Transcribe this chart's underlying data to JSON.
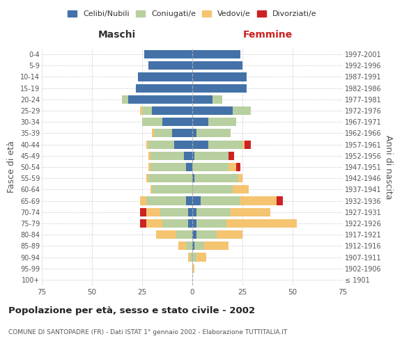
{
  "age_groups": [
    "100+",
    "95-99",
    "90-94",
    "85-89",
    "80-84",
    "75-79",
    "70-74",
    "65-69",
    "60-64",
    "55-59",
    "50-54",
    "45-49",
    "40-44",
    "35-39",
    "30-34",
    "25-29",
    "20-24",
    "15-19",
    "10-14",
    "5-9",
    "0-4"
  ],
  "birth_years": [
    "≤ 1901",
    "1902-1906",
    "1907-1911",
    "1912-1916",
    "1917-1921",
    "1922-1926",
    "1927-1931",
    "1932-1936",
    "1937-1941",
    "1942-1946",
    "1947-1951",
    "1952-1956",
    "1957-1961",
    "1962-1966",
    "1967-1971",
    "1972-1976",
    "1977-1981",
    "1982-1986",
    "1987-1991",
    "1992-1996",
    "1997-2001"
  ],
  "maschi": {
    "celibi": [
      0,
      0,
      0,
      0,
      0,
      2,
      2,
      3,
      0,
      0,
      3,
      4,
      9,
      10,
      15,
      20,
      32,
      28,
      27,
      22,
      24
    ],
    "coniugati": [
      0,
      0,
      1,
      3,
      8,
      13,
      14,
      20,
      20,
      22,
      18,
      17,
      13,
      9,
      10,
      5,
      3,
      0,
      0,
      0,
      0
    ],
    "vedovi": [
      0,
      0,
      1,
      4,
      10,
      8,
      7,
      3,
      1,
      1,
      1,
      1,
      1,
      1,
      0,
      1,
      0,
      0,
      0,
      0,
      0
    ],
    "divorziati": [
      0,
      0,
      0,
      0,
      0,
      3,
      3,
      0,
      0,
      0,
      0,
      0,
      0,
      0,
      0,
      0,
      0,
      0,
      0,
      0,
      0
    ]
  },
  "femmine": {
    "nubili": [
      0,
      0,
      0,
      1,
      2,
      2,
      2,
      4,
      0,
      1,
      0,
      1,
      8,
      2,
      8,
      20,
      10,
      27,
      27,
      25,
      24
    ],
    "coniugate": [
      0,
      0,
      2,
      5,
      10,
      15,
      17,
      20,
      20,
      22,
      18,
      17,
      17,
      17,
      14,
      9,
      5,
      0,
      0,
      0,
      0
    ],
    "vedove": [
      0,
      1,
      5,
      12,
      13,
      35,
      20,
      18,
      8,
      2,
      4,
      0,
      1,
      0,
      0,
      0,
      0,
      0,
      0,
      0,
      0
    ],
    "divorziate": [
      0,
      0,
      0,
      0,
      0,
      0,
      0,
      3,
      0,
      0,
      2,
      3,
      3,
      0,
      0,
      0,
      0,
      0,
      0,
      0,
      0
    ]
  },
  "colors": {
    "celibi": "#4472a8",
    "coniugati": "#b8cfa0",
    "vedovi": "#f5c471",
    "divorziati": "#cc2222"
  },
  "xlim": 75,
  "title": "Popolazione per età, sesso e stato civile - 2002",
  "subtitle": "COMUNE DI SANTOPADRE (FR) - Dati ISTAT 1° gennaio 2002 - Elaborazione TUTTITALIA.IT",
  "ylabel_left": "Fasce di età",
  "ylabel_right": "Anni di nascita",
  "xlabel_left": "Maschi",
  "xlabel_right": "Femmine"
}
